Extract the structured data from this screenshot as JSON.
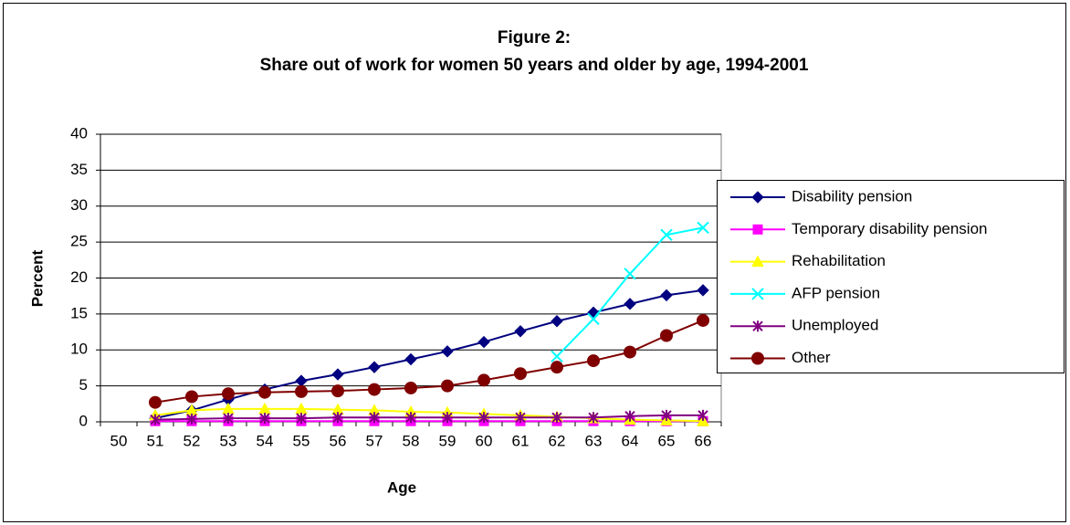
{
  "chart_data": {
    "type": "line",
    "title": "Figure 2:",
    "subtitle": "Share out of work for women 50 years and older by age, 1994-2001",
    "x_label": "Age",
    "y_label": "Percent",
    "categories": [
      "50",
      "51",
      "52",
      "53",
      "54",
      "55",
      "56",
      "57",
      "58",
      "59",
      "60",
      "61",
      "62",
      "63",
      "64",
      "65",
      "66"
    ],
    "ylim": [
      0,
      40
    ],
    "yticks": [
      0,
      5,
      10,
      15,
      20,
      25,
      30,
      35,
      40
    ],
    "grid": true,
    "legend": "right",
    "series": [
      {
        "name": "Disability pension",
        "color": "#000080",
        "marker": "diamond",
        "values": [
          null,
          0.5,
          1.6,
          3.1,
          4.5,
          5.7,
          6.6,
          7.6,
          8.7,
          9.8,
          11.1,
          12.6,
          14.0,
          15.2,
          16.4,
          17.6,
          18.3
        ]
      },
      {
        "name": "Temporary disability pension",
        "color": "#FF00FF",
        "marker": "square",
        "values": [
          null,
          0.1,
          0.1,
          0.1,
          0.1,
          0.1,
          0.1,
          0.1,
          0.1,
          0.1,
          0.1,
          0.1,
          0.1,
          0.1,
          0.1,
          0.1,
          0.1
        ]
      },
      {
        "name": "Rehabilitation",
        "color": "#FFFF00",
        "marker": "triangle",
        "values": [
          null,
          0.9,
          1.6,
          1.8,
          1.8,
          1.8,
          1.7,
          1.6,
          1.4,
          1.3,
          1.1,
          0.9,
          0.7,
          0.5,
          0.3,
          0.2,
          0.1
        ]
      },
      {
        "name": "AFP pension",
        "color": "#00FFFF",
        "marker": "x",
        "values": [
          null,
          null,
          null,
          null,
          null,
          null,
          null,
          null,
          null,
          null,
          null,
          null,
          9.1,
          14.3,
          20.6,
          26.0,
          27.0
        ]
      },
      {
        "name": "Unemployed",
        "color": "#800080",
        "marker": "star",
        "values": [
          null,
          0.3,
          0.4,
          0.5,
          0.5,
          0.5,
          0.6,
          0.6,
          0.6,
          0.6,
          0.6,
          0.6,
          0.6,
          0.6,
          0.8,
          0.9,
          0.9
        ]
      },
      {
        "name": "Other",
        "color": "#800000",
        "marker": "circle",
        "values": [
          null,
          2.7,
          3.5,
          3.9,
          4.1,
          4.2,
          4.3,
          4.5,
          4.7,
          5.0,
          5.8,
          6.7,
          7.6,
          8.5,
          9.7,
          12.0,
          14.1
        ]
      }
    ]
  }
}
